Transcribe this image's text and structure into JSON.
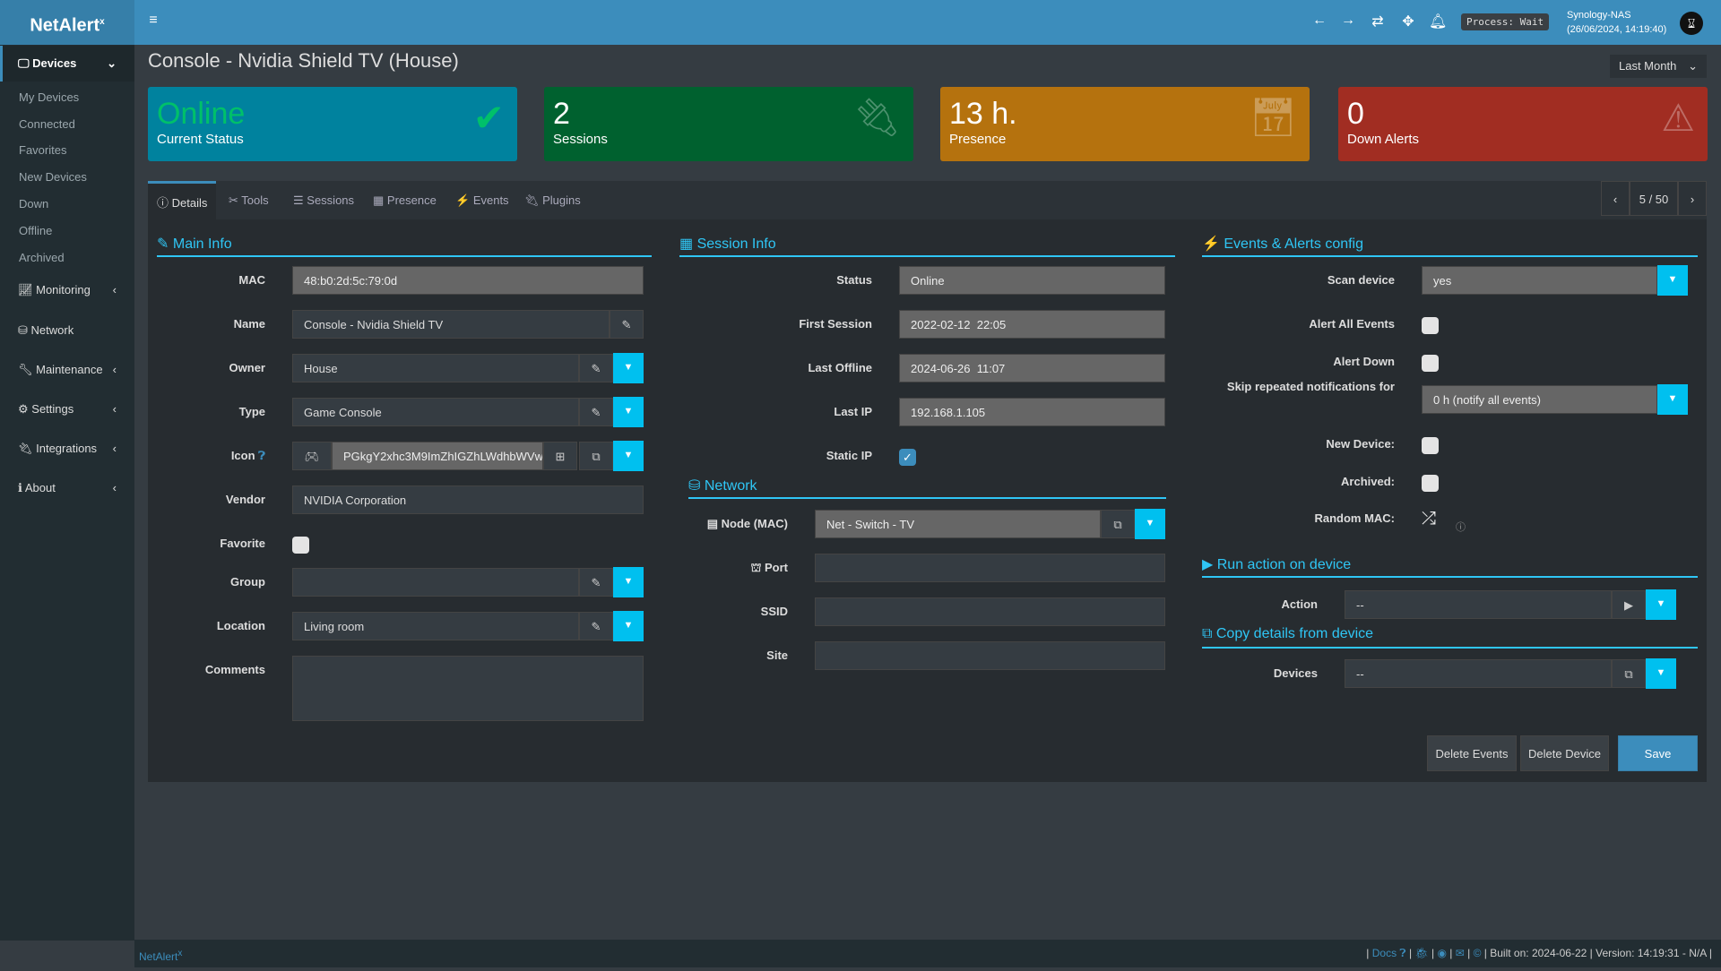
{
  "header": {
    "logo": "NetAlert",
    "logo_sup": "x",
    "process": "Process: Wait",
    "host": "Synology-NAS",
    "datetime": "(26/06/2024, 14:19:40)",
    "icons": [
      "arrow-left-icon",
      "arrow-right-icon",
      "refresh-icon",
      "arrows-move-icon",
      "bell-icon"
    ]
  },
  "sidebar": {
    "devices": "Devices",
    "sub": [
      "My Devices",
      "Connected",
      "Favorites",
      "New Devices",
      "Down",
      "Offline",
      "Archived"
    ],
    "items": [
      "Monitoring",
      "Network",
      "Maintenance",
      "Settings",
      "Integrations",
      "About"
    ]
  },
  "page": {
    "title": "Console - Nvidia Shield TV (House)",
    "range": "Last Month"
  },
  "boxes": [
    {
      "value": "Online",
      "label": "Current Status",
      "color": "#00829e"
    },
    {
      "value": "2",
      "label": "Sessions",
      "color": "#00612f"
    },
    {
      "value": "13 h.",
      "label": "Presence",
      "color": "#b5720e"
    },
    {
      "value": "0",
      "label": "Down Alerts",
      "color": "#a12d22"
    }
  ],
  "tabs": [
    "Details",
    "Tools",
    "Sessions",
    "Presence",
    "Events",
    "Plugins"
  ],
  "pager": {
    "value": "5 / 50"
  },
  "main_info": {
    "title": "Main Info",
    "mac_label": "MAC",
    "mac": "48:b0:2d:5c:79:0d",
    "name_label": "Name",
    "name": "Console - Nvidia Shield TV",
    "owner_label": "Owner",
    "owner": "House",
    "type_label": "Type",
    "type": "Game Console",
    "icon_label": "Icon",
    "icon": "PGkgY2xhc3M9ImZhIGZhLWdhbWVw",
    "vendor_label": "Vendor",
    "vendor": "NVIDIA Corporation",
    "favorite_label": "Favorite",
    "favorite": false,
    "group_label": "Group",
    "group": "",
    "location_label": "Location",
    "location": "Living room",
    "comments_label": "Comments",
    "comments": ""
  },
  "session_info": {
    "title": "Session Info",
    "status_label": "Status",
    "status": "Online",
    "first_label": "First Session",
    "first": "2022-02-12  22:05",
    "last_offline_label": "Last Offline",
    "last_offline": "2024-06-26  11:07",
    "last_ip_label": "Last IP",
    "last_ip": "192.168.1.105",
    "static_ip_label": "Static IP",
    "static_ip": true
  },
  "network": {
    "title": "Network",
    "node_label": "Node (MAC)",
    "node": "Net - Switch - TV",
    "port_label": "Port",
    "port": "",
    "ssid_label": "SSID",
    "ssid": "",
    "site_label": "Site",
    "site": ""
  },
  "events": {
    "title": "Events & Alerts config",
    "scan_label": "Scan device",
    "scan": "yes",
    "alert_all_label": "Alert All Events",
    "alert_all": false,
    "alert_down_label": "Alert Down",
    "alert_down": false,
    "skip_label": "Skip repeated notifications for",
    "skip": "0 h (notify all events)",
    "new_label": "New Device:",
    "new_device": false,
    "archived_label": "Archived:",
    "archived": false,
    "random_label": "Random MAC:"
  },
  "run_action": {
    "title": "Run action on device",
    "action_label": "Action",
    "action": "--"
  },
  "copy": {
    "title": "Copy details from device",
    "devices_label": "Devices",
    "devices": "--"
  },
  "buttons": {
    "delete_events": "Delete Events",
    "delete_device": "Delete Device",
    "save": "Save"
  },
  "footer": {
    "brand": "NetAlert",
    "brand_sup": "x",
    "docs": "Docs",
    "built": "Built on: 2024-06-22",
    "version": "Version: 14:19:31 - N/A"
  }
}
